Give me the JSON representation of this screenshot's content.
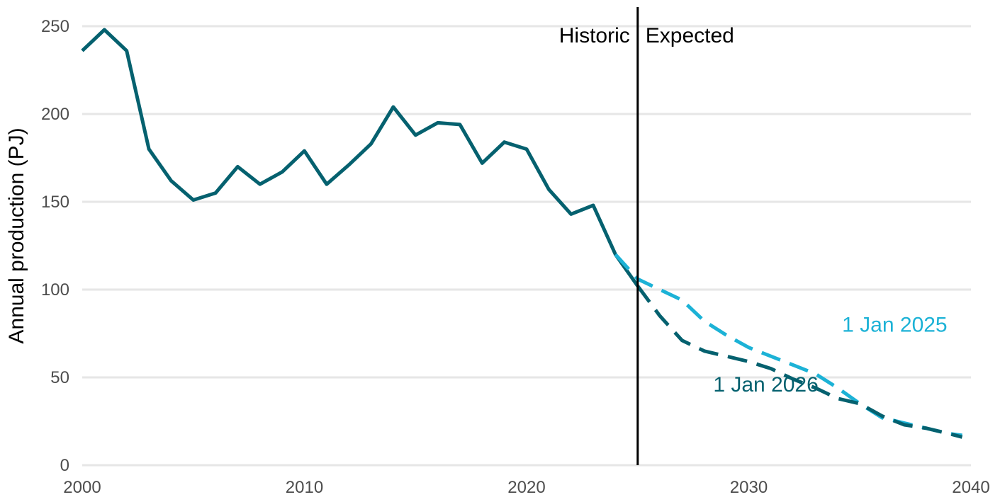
{
  "chart_data": {
    "type": "line",
    "title": "",
    "xlabel": "",
    "ylabel": "Annual production (PJ)",
    "xlim": [
      2000,
      2040
    ],
    "ylim": [
      0,
      250
    ],
    "x_ticks": [
      2000,
      2010,
      2020,
      2030,
      2040
    ],
    "y_ticks": [
      0,
      50,
      100,
      150,
      200,
      250
    ],
    "grid": "horizontal",
    "divider": {
      "x": 2025,
      "left_label": "Historic",
      "right_label": "Expected"
    },
    "series": [
      {
        "style": "solid",
        "color": "#05616f",
        "x": [
          2000,
          2001,
          2002,
          2003,
          2004,
          2005,
          2006,
          2007,
          2008,
          2009,
          2010,
          2011,
          2012,
          2013,
          2014,
          2015,
          2016,
          2017,
          2018,
          2019,
          2020,
          2021,
          2022,
          2023,
          2024,
          2025
        ],
        "y": [
          236,
          248,
          236,
          180,
          162,
          151,
          155,
          170,
          160,
          167,
          179,
          160,
          171,
          183,
          204,
          188,
          195,
          194,
          172,
          184,
          180,
          157,
          143,
          148,
          120,
          102
        ]
      },
      {
        "name": "1 Jan 2025",
        "style": "dashed",
        "color": "#1cb2d6",
        "x": [
          2024,
          2025,
          2026,
          2027,
          2028,
          2029,
          2030,
          2031,
          2032,
          2033,
          2034,
          2035,
          2036,
          2037,
          2038,
          2039,
          2039.6
        ],
        "y": [
          120,
          106,
          100,
          94,
          82,
          74,
          67,
          62,
          57,
          52,
          44,
          35,
          27,
          24,
          21,
          18,
          17
        ]
      },
      {
        "name": "1 Jan 2026",
        "style": "dashed",
        "color": "#05616f",
        "x": [
          2025,
          2026,
          2027,
          2028,
          2029,
          2030,
          2031,
          2032,
          2033,
          2034,
          2035,
          2036,
          2037,
          2038,
          2039,
          2039.6
        ],
        "y": [
          102,
          85,
          71,
          65,
          62,
          59,
          55,
          49,
          44,
          38,
          35,
          28,
          23,
          21,
          18,
          16
        ]
      }
    ],
    "annotations": [
      {
        "text": "1 Jan 2025",
        "x": 2034.2,
        "y": 76,
        "color": "#1cb2d6"
      },
      {
        "text": "1 Jan 2026",
        "x": 2028.4,
        "y": 42,
        "color": "#05616f"
      }
    ]
  }
}
